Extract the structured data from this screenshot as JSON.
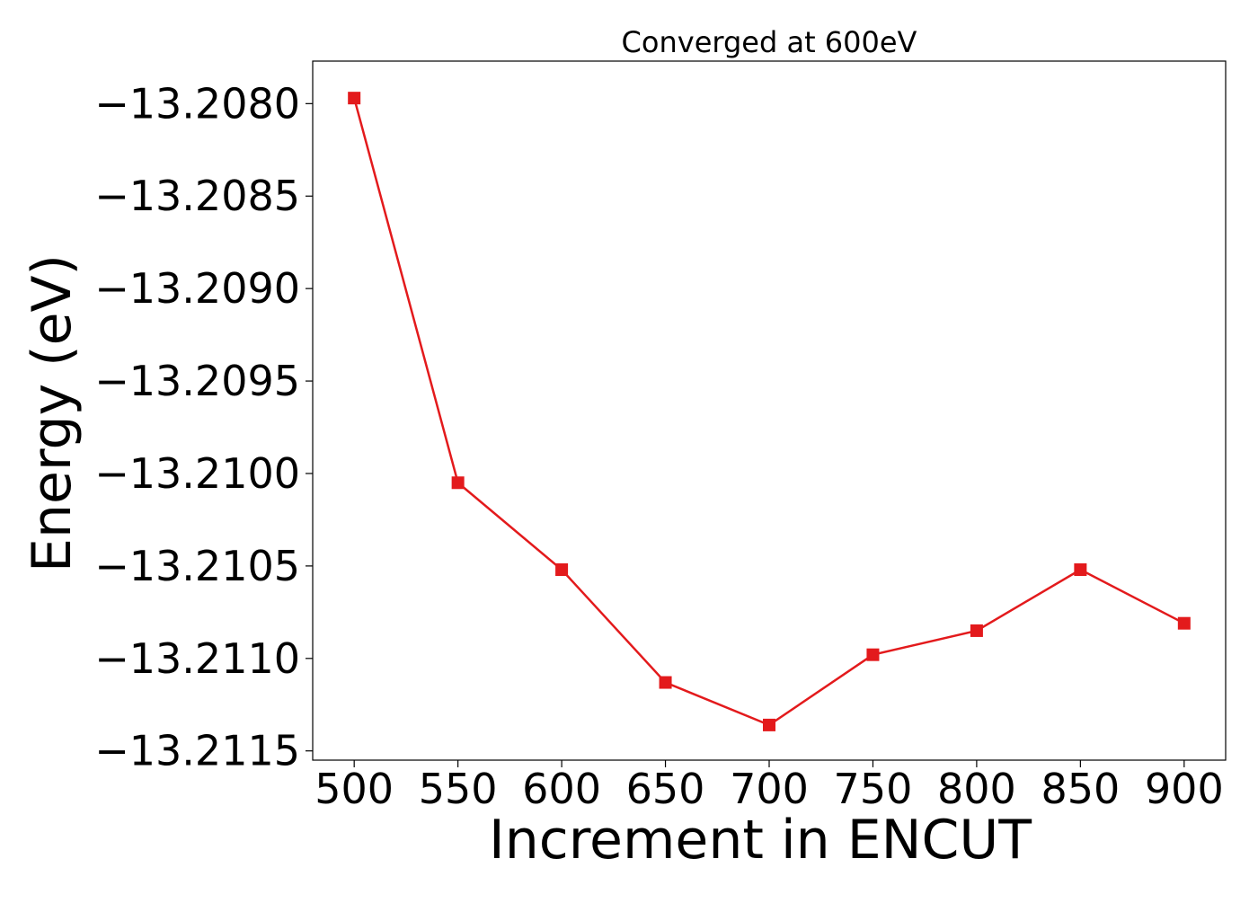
{
  "chart_data": {
    "type": "line",
    "title": "Converged at 600eV",
    "xlabel": "Increment in ENCUT",
    "ylabel": "Energy (eV)",
    "x": [
      500,
      550,
      600,
      650,
      700,
      750,
      800,
      850,
      900
    ],
    "series": [
      {
        "values": [
          -13.20797,
          -13.21005,
          -13.21052,
          -13.21113,
          -13.21136,
          -13.21098,
          -13.21085,
          -13.21052,
          -13.21081
        ],
        "color": "#e31a1c",
        "marker": "square"
      }
    ],
    "xticks": [
      500,
      550,
      600,
      650,
      700,
      750,
      800,
      850,
      900
    ],
    "xtick_labels": [
      "500",
      "550",
      "600",
      "650",
      "700",
      "750",
      "800",
      "850",
      "900"
    ],
    "yticks": [
      -13.208,
      -13.2085,
      -13.209,
      -13.2095,
      -13.21,
      -13.2105,
      -13.211,
      -13.2115
    ],
    "ytick_labels": [
      "−13.2080",
      "−13.2085",
      "−13.2090",
      "−13.2095",
      "−13.2100",
      "−13.2105",
      "−13.2110",
      "−13.2115"
    ],
    "xlim": [
      480,
      920
    ],
    "ylim": [
      -13.21155,
      -13.20777
    ],
    "grid": false,
    "legend": "none"
  }
}
